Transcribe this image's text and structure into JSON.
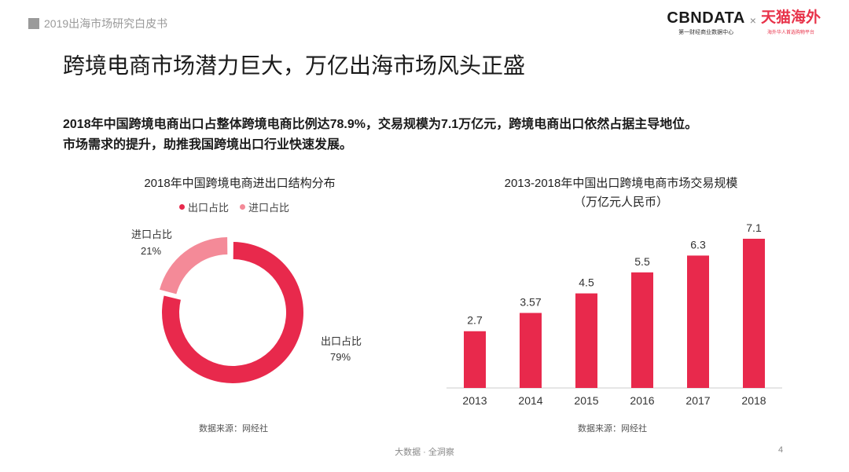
{
  "header": {
    "tag": "2019出海市场研究白皮书",
    "logo_cbn": "CBNDATA",
    "logo_cbn_sub": "第一财经商业数据中心",
    "logo_times": "×",
    "logo_tmall": "天猫海外",
    "logo_tmall_sub": "海外华人首选购物平台"
  },
  "page_title": "跨境电商市场潜力巨大，万亿出海市场风头正盛",
  "intro": {
    "line1": "2018年中国跨境电商出口占整体跨境电商比例达78.9%，交易规模为7.1万亿元，跨境电商出口依然占据主导地位。",
    "line2": "市场需求的提升，助推我国跨境出口行业快速发展。"
  },
  "colors": {
    "primary": "#e8294c",
    "secondary": "#f48a98",
    "axis": "#cccccc"
  },
  "chart_data": [
    {
      "type": "pie",
      "title": "2018年中国跨境电商进出口结构分布",
      "legend": [
        "出口占比",
        "进口占比"
      ],
      "slices": [
        {
          "name": "出口占比",
          "value": 79,
          "label": "79%"
        },
        {
          "name": "进口占比",
          "value": 21,
          "label": "21%"
        }
      ],
      "source": "数据来源：网经社"
    },
    {
      "type": "bar",
      "title": "2013-2018年中国出口跨境电商市场交易规模",
      "subtitle": "（万亿元人民币）",
      "categories": [
        "2013",
        "2014",
        "2015",
        "2016",
        "2017",
        "2018"
      ],
      "values": [
        2.7,
        3.57,
        4.5,
        5.5,
        6.3,
        7.1
      ],
      "value_labels": [
        "2.7",
        "3.57",
        "4.5",
        "5.5",
        "6.3",
        "7.1"
      ],
      "ylim": [
        0,
        7.1
      ],
      "source": "数据来源：网经社"
    }
  ],
  "footer": {
    "center": "大数据 · 全洞察",
    "page": "4"
  }
}
